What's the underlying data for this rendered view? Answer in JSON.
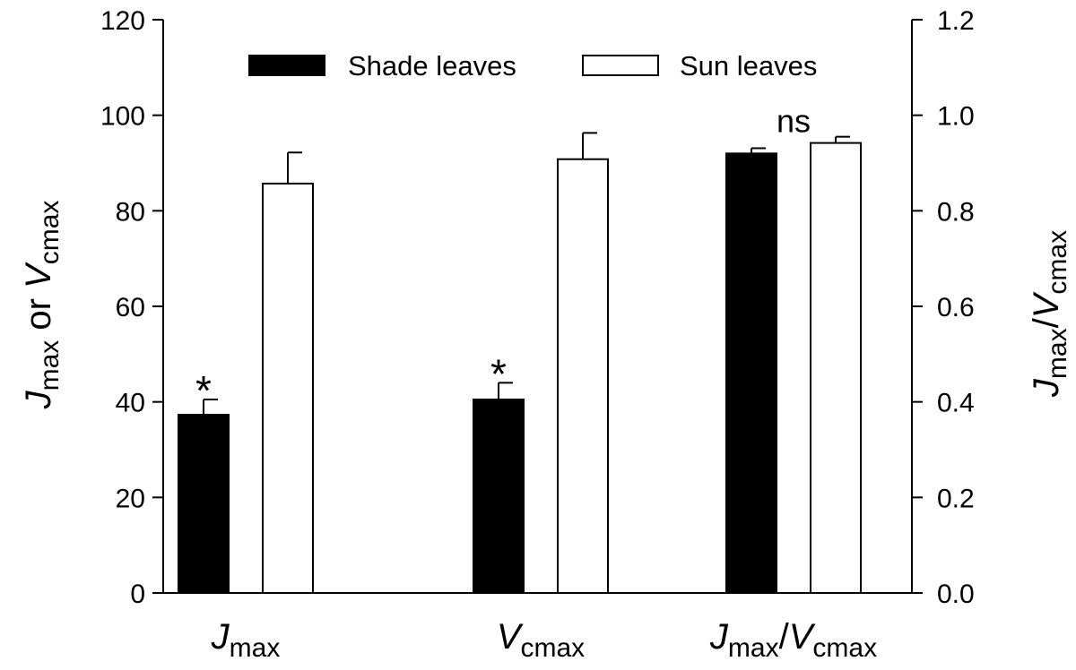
{
  "chart_data": {
    "type": "bar",
    "categories": [
      {
        "main": "J",
        "sub": "max"
      },
      {
        "main": "V",
        "sub": "cmax"
      },
      {
        "main": "J",
        "sub": "max",
        "sep": "/",
        "main2": "V",
        "sub2": "cmax"
      }
    ],
    "series": [
      {
        "name": "Shade leaves",
        "color": "#000000",
        "values": [
          37.3,
          40.5,
          92.0
        ],
        "errors": [
          3.2,
          3.5,
          1.1
        ]
      },
      {
        "name": "Sun leaves",
        "color": "#ffffff",
        "values": [
          85.7,
          90.8,
          94.2
        ],
        "errors": [
          6.5,
          5.5,
          1.3
        ]
      }
    ],
    "value_axis_note": "third category plotted against right axis (values shown here x100 on left scale = right-axis value x 100)",
    "right_values": {
      "shade": 0.92,
      "sun": 0.942,
      "shade_err": 0.011,
      "sun_err": 0.013
    },
    "significance": [
      "*",
      "*",
      "ns"
    ],
    "ylabel": {
      "main": "J",
      "sub": "max",
      "mid": " or ",
      "main2": "V",
      "sub2": "cmax"
    },
    "y2label": {
      "main": "J",
      "sub": "max",
      "sep": "/",
      "main2": "V",
      "sub2": "cmax"
    },
    "ylim": [
      0,
      120
    ],
    "y2lim": [
      0.0,
      1.2
    ],
    "yticks": [
      "0",
      "20",
      "40",
      "60",
      "80",
      "100",
      "120"
    ],
    "y2ticks": [
      "0.0",
      "0.2",
      "0.4",
      "0.6",
      "0.8",
      "1.0",
      "1.2"
    ],
    "legend_position": "top-center",
    "grid": false
  }
}
